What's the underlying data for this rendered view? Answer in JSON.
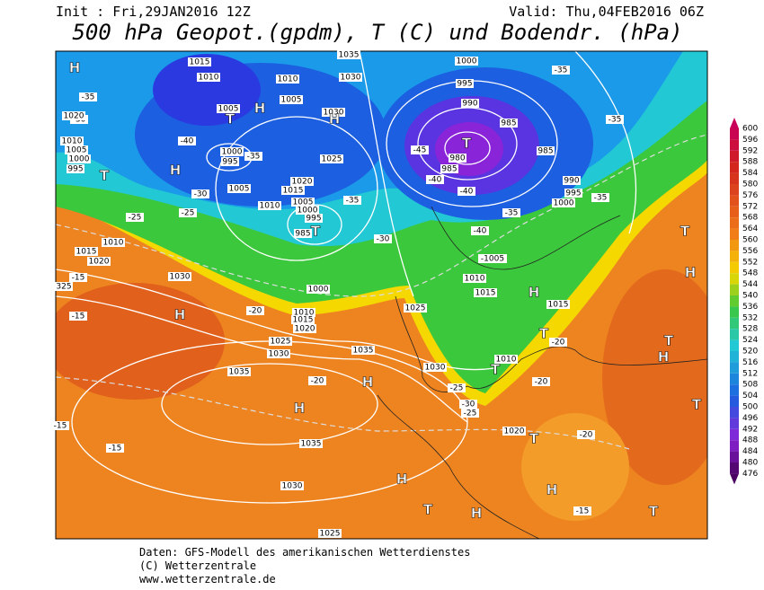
{
  "header": {
    "init": "Init : Fri,29JAN2016 12Z",
    "valid": "Valid: Thu,04FEB2016 06Z",
    "title": "500 hPa Geopot.(gpdm), T (C) und Bodendr. (hPa)"
  },
  "colorbar": {
    "labels": [
      600,
      596,
      592,
      588,
      584,
      580,
      576,
      572,
      568,
      564,
      560,
      556,
      552,
      548,
      544,
      540,
      536,
      532,
      528,
      524,
      520,
      516,
      512,
      508,
      504,
      500,
      496,
      492,
      488,
      484,
      480,
      476
    ]
  },
  "map": {
    "labels": [
      "H",
      "1015",
      "1010",
      "1035",
      "1000",
      "-35",
      "-35",
      "1010",
      "1030",
      "1005",
      "T",
      "H",
      "1005",
      "1030",
      "H",
      "995",
      "990",
      "-30",
      "1020",
      "985",
      "-35",
      "1010",
      "1005",
      "1000",
      "995",
      "T",
      "-40",
      "1000",
      "995",
      "-35",
      "T",
      "980",
      "985",
      "H",
      "1025",
      "-45",
      "985",
      "990",
      "1005",
      "1020",
      "1015",
      "-30",
      "-40",
      "-40",
      "995",
      "-35",
      "1010",
      "1005",
      "1000",
      "995",
      "-35",
      "1000",
      "-25",
      "-25",
      "-35",
      "T",
      "985",
      "-30",
      "-40",
      "T",
      "1010",
      "1015",
      "1020",
      "-1005",
      "-15",
      "1030",
      "1010",
      "1015",
      "H",
      "325",
      "1000",
      "1025",
      "H",
      "1015",
      "-15",
      "H",
      "-20",
      "1010",
      "1015",
      "1020",
      "1025",
      "T",
      "-20",
      "1030",
      "1035",
      "T",
      "H",
      "1030",
      "1010",
      "1035",
      "T",
      "-20",
      "-20",
      "H",
      "-25",
      "T",
      "-30",
      "-25",
      "H",
      "-15",
      "1020",
      "T",
      "-20",
      "-15",
      "1035",
      "H",
      "H",
      "1030",
      "T",
      "H",
      "-15",
      "T",
      "1025"
    ]
  },
  "footer": {
    "lines": [
      "Daten: GFS-Modell des amerikanischen Wetterdienstes",
      "(C) Wetterzentrale",
      "www.wetterzentrale.de"
    ]
  }
}
